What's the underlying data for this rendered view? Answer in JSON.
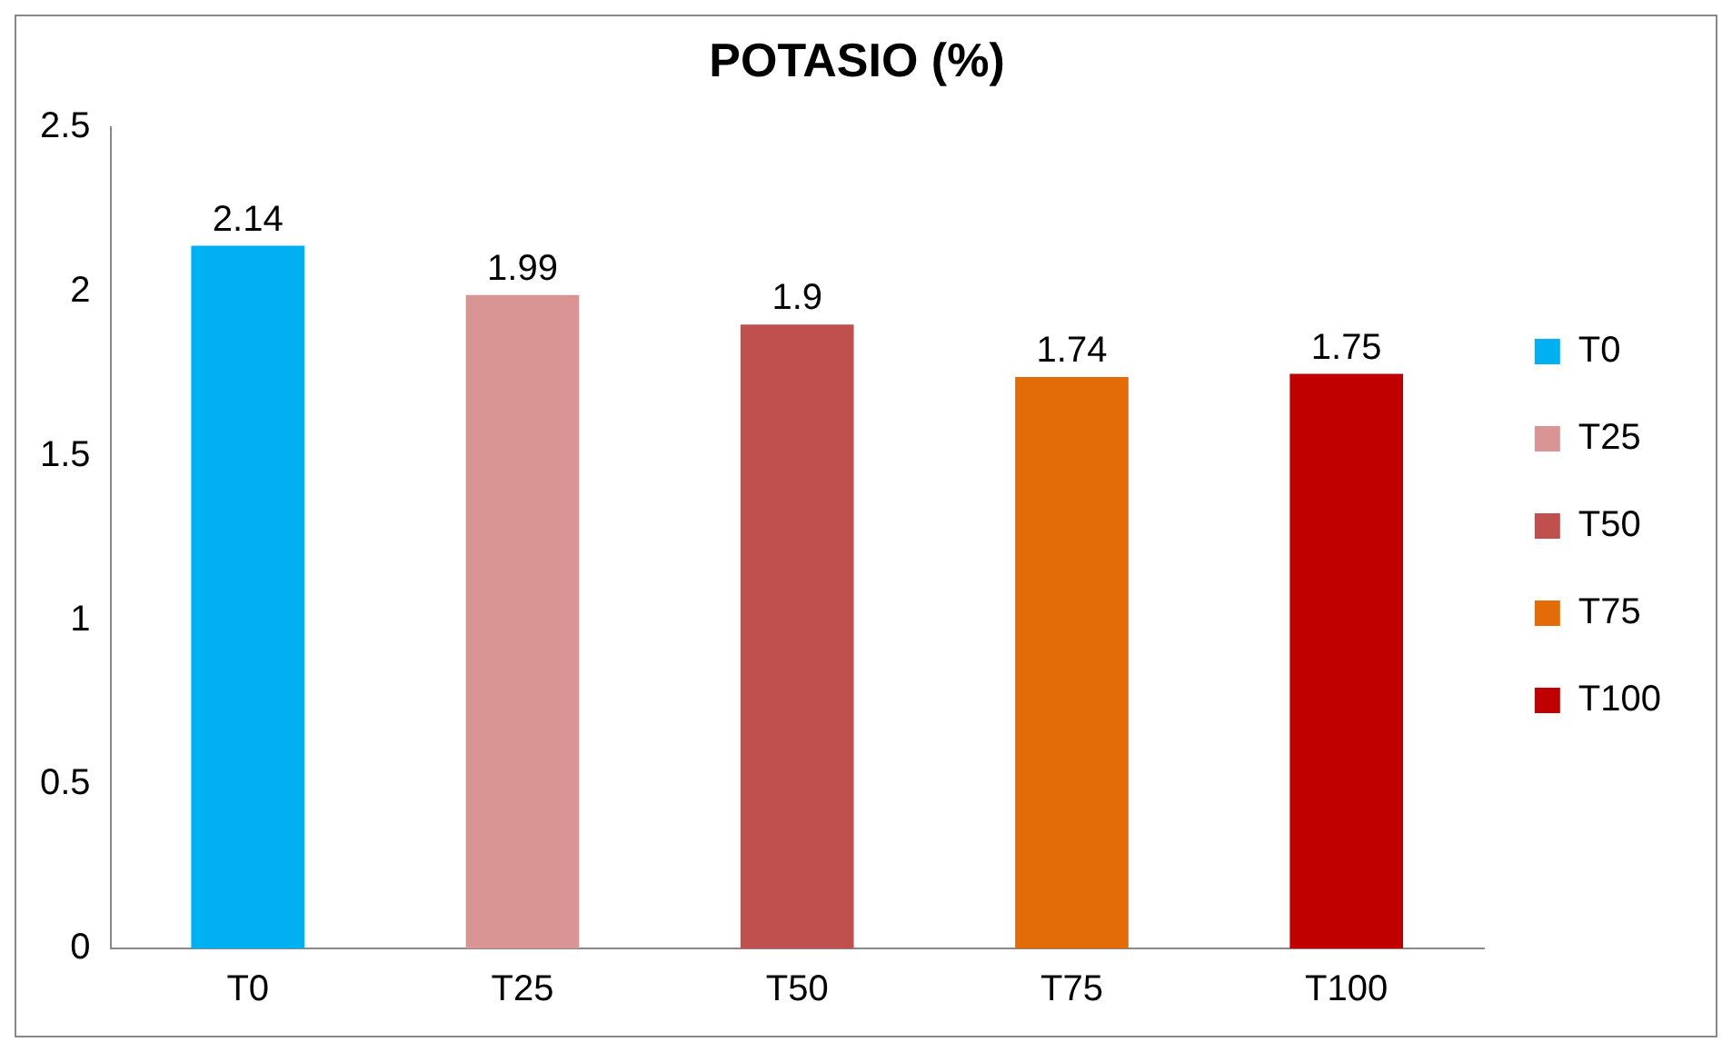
{
  "chart_data": {
    "type": "bar",
    "title": "POTASIO (%)",
    "categories": [
      "T0",
      "T25",
      "T50",
      "T75",
      "T100"
    ],
    "series": [
      {
        "name": "T0",
        "color": "#00b0f0",
        "values": [
          2.14,
          null,
          null,
          null,
          null
        ]
      },
      {
        "name": "T25",
        "color": "#d99594",
        "values": [
          null,
          1.99,
          null,
          null,
          null
        ]
      },
      {
        "name": "T50",
        "color": "#c0504d",
        "values": [
          null,
          null,
          1.9,
          null,
          null
        ]
      },
      {
        "name": "T75",
        "color": "#e36c09",
        "values": [
          null,
          null,
          null,
          1.74,
          null
        ]
      },
      {
        "name": "T100",
        "color": "#c00000",
        "values": [
          null,
          null,
          null,
          null,
          1.75
        ]
      }
    ],
    "ylim": [
      0,
      2.5
    ],
    "yticks": [
      0,
      0.5,
      1,
      1.5,
      2,
      2.5
    ],
    "data_labels": true,
    "legend": "right",
    "grid": false
  }
}
